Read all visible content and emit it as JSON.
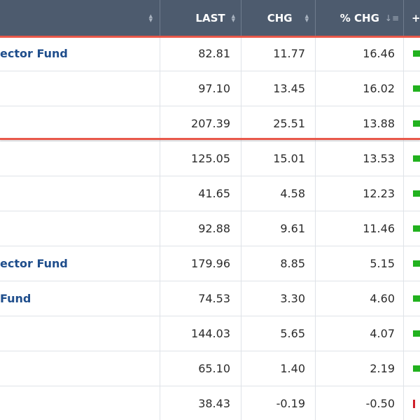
{
  "header": {
    "last_label": "LAST",
    "chg_label": "CHG",
    "pct_chg_label": "% CHG",
    "bar_label": "+/"
  },
  "rows": [
    {
      "name": "ector Fund",
      "last": "82.81",
      "chg": "11.77",
      "pct": "16.46",
      "dir": "up"
    },
    {
      "name": "",
      "last": "97.10",
      "chg": "13.45",
      "pct": "16.02",
      "dir": "up"
    },
    {
      "name": "",
      "last": "207.39",
      "chg": "25.51",
      "pct": "13.88",
      "dir": "up"
    },
    {
      "name": "",
      "last": "125.05",
      "chg": "15.01",
      "pct": "13.53",
      "dir": "up"
    },
    {
      "name": "",
      "last": "41.65",
      "chg": "4.58",
      "pct": "12.23",
      "dir": "up"
    },
    {
      "name": "",
      "last": "92.88",
      "chg": "9.61",
      "pct": "11.46",
      "dir": "up"
    },
    {
      "name": "ector Fund",
      "last": "179.96",
      "chg": "8.85",
      "pct": "5.15",
      "dir": "up"
    },
    {
      "name": "Fund",
      "last": "74.53",
      "chg": "3.30",
      "pct": "4.60",
      "dir": "up"
    },
    {
      "name": "",
      "last": "144.03",
      "chg": "5.65",
      "pct": "4.07",
      "dir": "up"
    },
    {
      "name": "",
      "last": "65.10",
      "chg": "1.40",
      "pct": "2.19",
      "dir": "up"
    },
    {
      "name": "",
      "last": "38.43",
      "chg": "-0.19",
      "pct": "-0.50",
      "dir": "down"
    }
  ],
  "colors": {
    "header_bg": "#4d5b6e",
    "name_link": "#1f4e8c",
    "up_bar": "#22b21f",
    "down_bar": "#d0202a",
    "highlight": "#e8584a"
  }
}
